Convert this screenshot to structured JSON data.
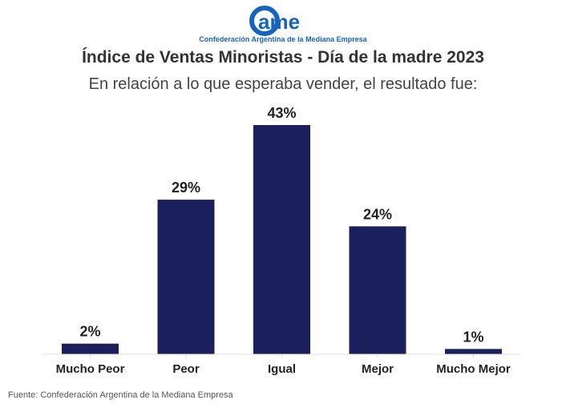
{
  "logo": {
    "text": "came",
    "tagline": "Confederación Argentina de la Mediana Empresa",
    "color": "#1565c0"
  },
  "chart_data": {
    "type": "bar",
    "title": "Índice de Ventas Minoristas - Día de la madre 2023",
    "subtitle": "En relación a lo que esperaba vender, el resultado fue:",
    "categories": [
      "Mucho Peor",
      "Peor",
      "Igual",
      "Mejor",
      "Mucho Mejor"
    ],
    "values": [
      2,
      29,
      43,
      24,
      1
    ],
    "labels": [
      "2%",
      "29%",
      "43%",
      "24%",
      "1%"
    ],
    "unit": "%",
    "ylim": [
      0,
      43
    ],
    "grid": false,
    "bar_color": "#1b1f5c",
    "xlabel": "",
    "ylabel": ""
  },
  "source": "Fuente: Confederación Argentina de la Mediana Empresa"
}
